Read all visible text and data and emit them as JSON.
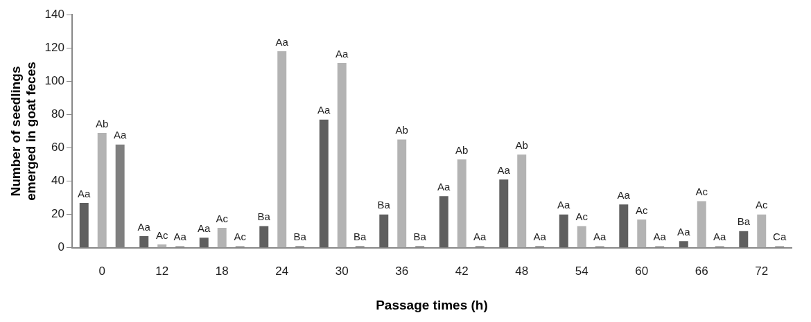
{
  "chart_data": {
    "type": "bar",
    "xlabel": "Passage times (h)",
    "ylabel": "Number of seedlings\nemerged in goat feces",
    "categories": [
      "0",
      "12",
      "18",
      "24",
      "30",
      "36",
      "42",
      "48",
      "54",
      "60",
      "66",
      "72"
    ],
    "ylim": [
      0,
      140
    ],
    "yticks": [
      0,
      20,
      40,
      60,
      80,
      100,
      120,
      140
    ],
    "grid": false,
    "legend": false,
    "series": [
      {
        "color": "#5f5f5f",
        "values": [
          27,
          7,
          6,
          13,
          77,
          20,
          31,
          41,
          20,
          26,
          4,
          10
        ],
        "value_labels": [
          "Aa",
          "Aa",
          "Aa",
          "Ba",
          "Aa",
          "Ba",
          "Aa",
          "Aa",
          "Aa",
          "Aa",
          "Aa",
          "Ba"
        ]
      },
      {
        "color": "#b3b3b3",
        "values": [
          69,
          2,
          12,
          118,
          111,
          65,
          53,
          56,
          13,
          17,
          28,
          20
        ],
        "value_labels": [
          "Ab",
          "Ac",
          "Ac",
          "Aa",
          "Aa",
          "Ab",
          "Ab",
          "Ab",
          "Ac",
          "Ac",
          "Ac",
          "Ac"
        ]
      },
      {
        "color": "#7f7f7f",
        "values": [
          62,
          0,
          0,
          1,
          1,
          1,
          1,
          1,
          0,
          0,
          0,
          0
        ],
        "value_labels": [
          "Aa",
          "Aa",
          "Ac",
          "Ba",
          "Ba",
          "Ba",
          "Aa",
          "Aa",
          "Aa",
          "Aa",
          "Aa",
          "Ca"
        ]
      }
    ]
  }
}
